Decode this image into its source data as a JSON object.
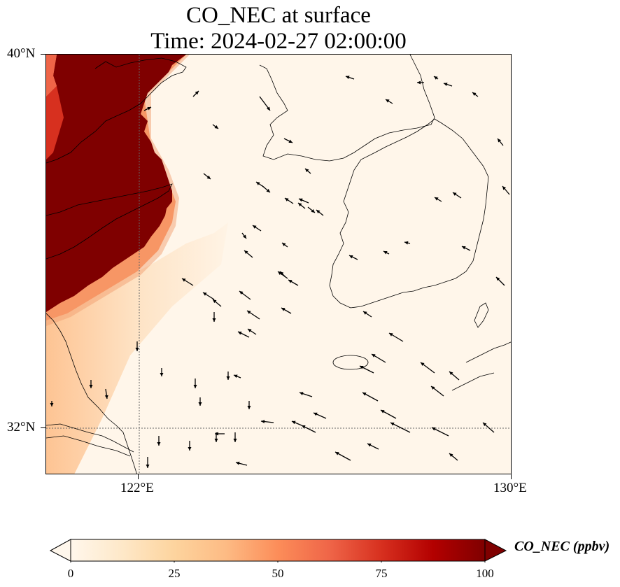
{
  "title": {
    "line1": "CO_NEC at surface",
    "line2": "Time: 2024-02-27 02:00:00"
  },
  "map": {
    "region": "Yellow Sea / Korean Peninsula",
    "extent": {
      "lon_min": 120,
      "lon_max": 130,
      "lat_min": 31,
      "lat_max": 40
    },
    "lat_ticks": [
      {
        "value": 40,
        "label": "40°N"
      },
      {
        "value": 32,
        "label": "32°N"
      }
    ],
    "lon_ticks": [
      {
        "value": 122,
        "label": "122°E"
      },
      {
        "value": 130,
        "label": "130°E"
      }
    ],
    "gridlines": {
      "lon": [
        122
      ],
      "lat": [
        32
      ],
      "style": "dotted"
    },
    "colormap": "OrRd",
    "field_description": "high CO concentration (saturated, >100 ppbv) along the northwest coast of China; near-zero over the sea and Korea",
    "wind_vectors": "northwesterly to westerly flow over the Yellow Sea"
  },
  "colorbar": {
    "label": "CO_NEC (ppbv)",
    "ticks": [
      {
        "value": 0,
        "label": "0"
      },
      {
        "value": 25,
        "label": "25"
      },
      {
        "value": 50,
        "label": "50"
      },
      {
        "value": 75,
        "label": "75"
      },
      {
        "value": 100,
        "label": "100"
      }
    ],
    "vmin": 0,
    "vmax": 100,
    "extend": "both",
    "colors": [
      "#fff7ec",
      "#fee8c8",
      "#fdd49e",
      "#fdbb84",
      "#fc8d59",
      "#ef6548",
      "#d7301f",
      "#b30000",
      "#7f0000"
    ]
  }
}
